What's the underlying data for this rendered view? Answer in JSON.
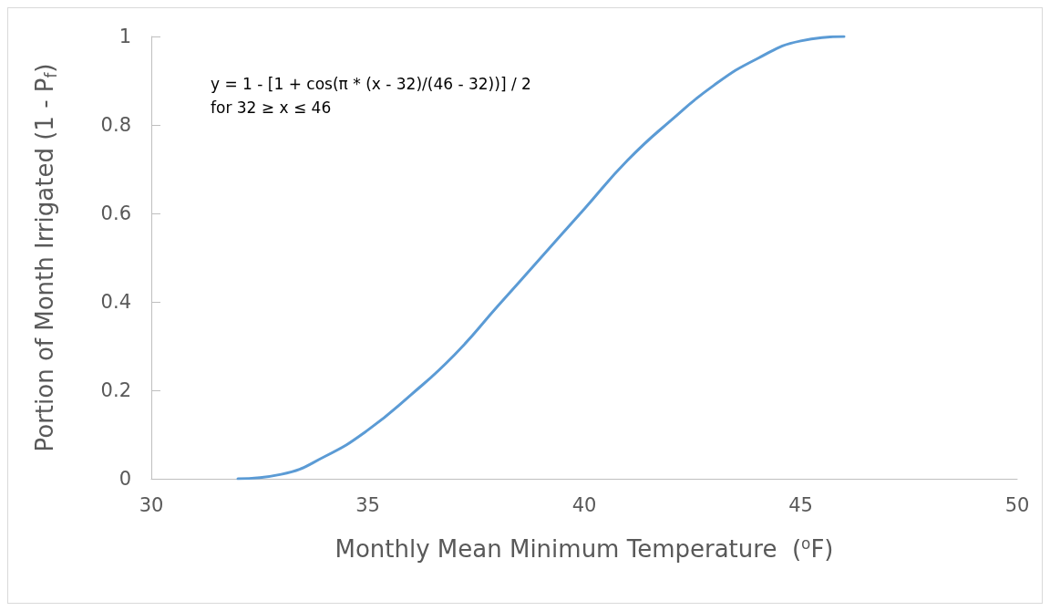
{
  "chart_data": {
    "type": "line",
    "xlabel": "Monthly Mean Minimum Temperature  ($^{o}$F)",
    "ylabel": "Portion of Month Irrigated (1 - P$_{f}$)",
    "annotations": [
      "y = 1 - [1 + cos(π * (x - 32)/(46 - 32))] / 2\nfor 32 ≥ x ≤ 46"
    ],
    "x": [
      32,
      33,
      34,
      35,
      36,
      37,
      38,
      39,
      40,
      41,
      42,
      43,
      44,
      45,
      46
    ],
    "series": [
      {
        "color": "#5b9bd5",
        "values": [
          0,
          0.01,
          0.05,
          0.11,
          0.19,
          0.28,
          0.39,
          0.5,
          0.61,
          0.72,
          0.81,
          0.89,
          0.95,
          0.99,
          1
        ]
      }
    ],
    "xlim": [
      30,
      50
    ],
    "xticks": [
      30,
      35,
      40,
      45,
      50
    ],
    "ylim": [
      0,
      1
    ],
    "yticks": [
      0,
      0.2,
      0.4,
      0.6,
      0.8,
      1
    ],
    "grid": false,
    "marker": "none",
    "line_style": "solid"
  }
}
